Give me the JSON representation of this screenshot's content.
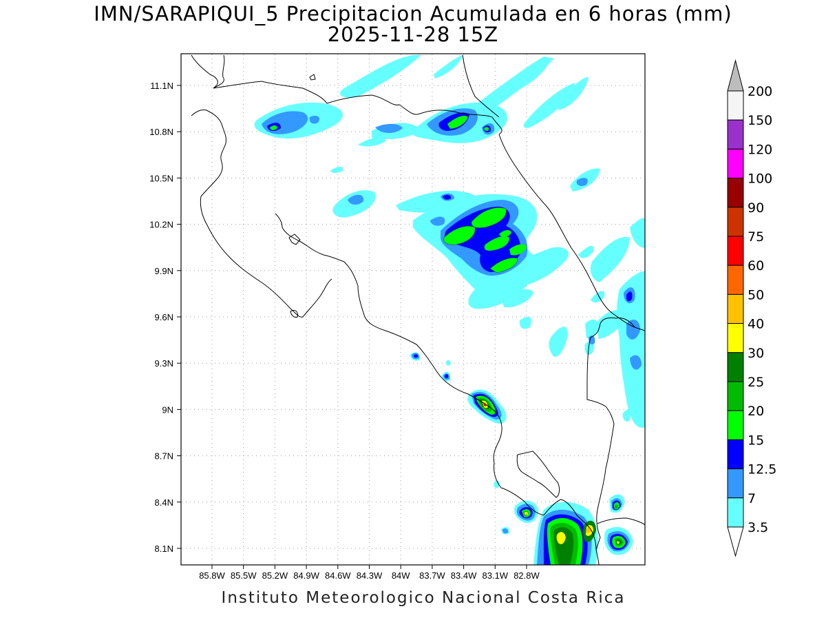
{
  "title": {
    "line1": "IMN/SARAPIQUI_5 Precipitacion Acumulada en 6 horas (mm)",
    "line2": "2025-11-28 15Z"
  },
  "credit": "Instituto Meteorologico Nacional Costa Rica",
  "map": {
    "lon_labels": [
      "85.8W",
      "85.5W",
      "85.2W",
      "84.9W",
      "84.6W",
      "84.3W",
      "84W",
      "83.7W",
      "83.4W",
      "83.1W",
      "82.8W"
    ],
    "lat_labels": [
      "11.1N",
      "10.8N",
      "10.5N",
      "10.2N",
      "9.9N",
      "9.6N",
      "9.3N",
      "9N",
      "8.7N",
      "8.4N",
      "8.1N"
    ]
  },
  "colorbar": {
    "labels": [
      "200",
      "150",
      "120",
      "100",
      "90",
      "75",
      "60",
      "50",
      "40",
      "30",
      "25",
      "20",
      "15",
      "12.5",
      "7",
      "3.5"
    ],
    "colors": [
      "#bdbdbd",
      "#f5f5f5",
      "#9932cc",
      "#ff00ff",
      "#990000",
      "#cc3300",
      "#ff0000",
      "#ff6600",
      "#ffc000",
      "#ffff00",
      "#008000",
      "#00bb00",
      "#00ff00",
      "#0000ff",
      "#3399ff",
      "#66ffff"
    ]
  }
}
